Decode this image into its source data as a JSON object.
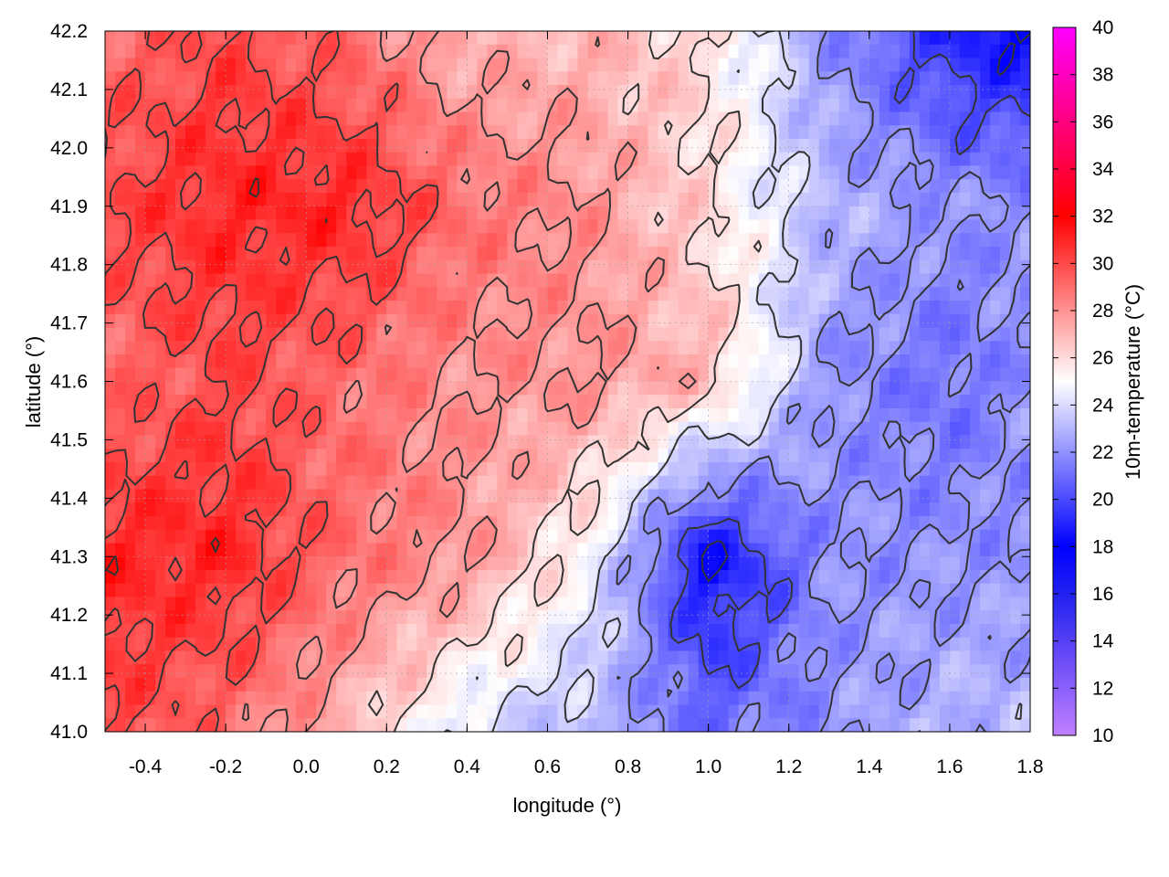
{
  "chart_data": {
    "type": "heatmap",
    "title": "",
    "xlabel": "longitude (°)",
    "ylabel": "latitude (°)",
    "colorbar_label": "10m-temperature (°C)",
    "xlim": [
      -0.5,
      1.8
    ],
    "ylim": [
      41.0,
      42.2
    ],
    "x_ticks": [
      -0.4,
      -0.2,
      0.0,
      0.2,
      0.4,
      0.6,
      0.8,
      1.0,
      1.2,
      1.4,
      1.6,
      1.8
    ],
    "x_tick_labels": [
      "-0.4",
      "-0.2",
      "0.0",
      "0.2",
      "0.4",
      "0.6",
      "0.8",
      "1.0",
      "1.2",
      "1.4",
      "1.6",
      "1.8"
    ],
    "y_ticks": [
      41.0,
      41.1,
      41.2,
      41.3,
      41.4,
      41.5,
      41.6,
      41.7,
      41.8,
      41.9,
      42.0,
      42.1,
      42.2
    ],
    "y_tick_labels": [
      "41.0",
      "41.1",
      "41.2",
      "41.3",
      "41.4",
      "41.5",
      "41.6",
      "41.7",
      "41.8",
      "41.9",
      "42.0",
      "42.1",
      "42.2"
    ],
    "colorbar_range": [
      10,
      40
    ],
    "colorbar_ticks": [
      10,
      12,
      14,
      16,
      18,
      20,
      22,
      24,
      26,
      28,
      30,
      32,
      34,
      36,
      38,
      40
    ],
    "colorbar_tick_labels": [
      "10",
      "12",
      "14",
      "16",
      "18",
      "20",
      "22",
      "24",
      "26",
      "28",
      "30",
      "32",
      "34",
      "36",
      "38",
      "40"
    ],
    "colormap": [
      {
        "value": 10,
        "color": "#c080ff"
      },
      {
        "value": 16,
        "color": "#2020f0"
      },
      {
        "value": 18,
        "color": "#0000ff"
      },
      {
        "value": 25,
        "color": "#ffffff"
      },
      {
        "value": 32,
        "color": "#ff0000"
      },
      {
        "value": 40,
        "color": "#ff00ff"
      }
    ],
    "contour_color": "#333333",
    "contour_levels": [
      18,
      20,
      22,
      24,
      26,
      28,
      30,
      32
    ],
    "grid": true,
    "field_samples": {
      "x": [
        -0.5,
        -0.2,
        0.1,
        0.4,
        0.7,
        1.0,
        1.3,
        1.6,
        1.8
      ],
      "y": [
        42.2,
        41.9,
        41.6,
        41.3,
        41.0
      ],
      "values": [
        [
          29,
          30,
          29,
          27,
          27,
          26,
          22,
          19,
          18
        ],
        [
          30,
          31,
          31,
          29,
          28,
          26,
          23,
          22,
          22
        ],
        [
          29,
          30,
          29,
          28,
          28,
          27,
          22,
          21,
          22
        ],
        [
          31,
          31,
          29,
          28,
          25,
          18,
          22,
          22,
          22
        ],
        [
          30,
          29,
          27,
          24,
          23,
          21,
          22,
          23,
          23
        ]
      ]
    }
  }
}
